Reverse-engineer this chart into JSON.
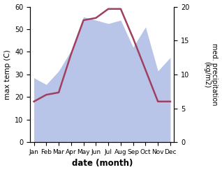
{
  "months": [
    "Jan",
    "Feb",
    "Mar",
    "Apr",
    "May",
    "Jun",
    "Jul",
    "Aug",
    "Sep",
    "Oct",
    "Nov",
    "Dec"
  ],
  "max_temp": [
    18,
    21,
    22,
    39,
    54,
    55,
    59,
    59,
    46,
    32,
    18,
    18
  ],
  "precipitation": [
    9.5,
    8.5,
    10.5,
    13.5,
    18.5,
    18.0,
    17.5,
    18.0,
    14.0,
    17.0,
    10.5,
    12.5
  ],
  "temp_color": "#a04060",
  "precip_fill_color": "#b8c4e8",
  "temp_ylim": [
    0,
    60
  ],
  "precip_ylim": [
    0,
    20
  ],
  "temp_yticks": [
    0,
    10,
    20,
    30,
    40,
    50,
    60
  ],
  "precip_yticks": [
    0,
    5,
    10,
    15,
    20
  ],
  "xlabel": "date (month)",
  "ylabel_left": "max temp (C)",
  "ylabel_right": "med. precipitation\n(kg/m2)",
  "bg_color": "#ffffff"
}
